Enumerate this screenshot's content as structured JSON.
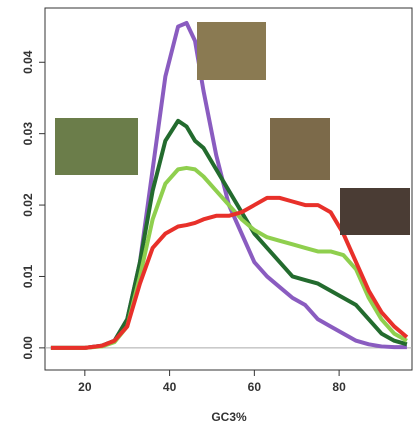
{
  "chart_data": {
    "type": "line",
    "xlabel": "GC3%",
    "x": [
      12,
      16,
      20,
      24,
      27,
      30,
      33,
      36,
      39,
      42,
      44,
      46,
      48,
      51,
      54,
      57,
      60,
      63,
      66,
      69,
      72,
      75,
      78,
      81,
      84,
      87,
      90,
      93,
      96
    ],
    "series": [
      {
        "color": "#8a5cc0",
        "values": [
          0,
          0,
          0,
          0.0003,
          0.001,
          0.004,
          0.012,
          0.025,
          0.038,
          0.045,
          0.0455,
          0.043,
          0.036,
          0.027,
          0.02,
          0.016,
          0.012,
          0.01,
          0.0085,
          0.007,
          0.006,
          0.004,
          0.003,
          0.002,
          0.001,
          0.0005,
          0.0002,
          0.0001,
          0.0001
        ]
      },
      {
        "color": "#236b2e",
        "values": [
          0,
          0,
          0,
          0.0003,
          0.001,
          0.004,
          0.012,
          0.022,
          0.029,
          0.0318,
          0.031,
          0.029,
          0.028,
          0.025,
          0.022,
          0.019,
          0.016,
          0.014,
          0.012,
          0.01,
          0.0095,
          0.009,
          0.008,
          0.007,
          0.006,
          0.004,
          0.002,
          0.001,
          0.0005
        ]
      },
      {
        "color": "#8fcf4e",
        "values": [
          0,
          0,
          0,
          0.0002,
          0.0008,
          0.003,
          0.01,
          0.018,
          0.023,
          0.025,
          0.0252,
          0.025,
          0.024,
          0.022,
          0.02,
          0.018,
          0.0165,
          0.0155,
          0.015,
          0.0145,
          0.014,
          0.0135,
          0.0135,
          0.013,
          0.011,
          0.007,
          0.004,
          0.002,
          0.001
        ]
      },
      {
        "color": "#e8302a",
        "values": [
          0,
          0,
          0,
          0.0003,
          0.001,
          0.003,
          0.009,
          0.014,
          0.016,
          0.017,
          0.0172,
          0.0175,
          0.018,
          0.0185,
          0.0185,
          0.019,
          0.02,
          0.021,
          0.021,
          0.0205,
          0.02,
          0.02,
          0.019,
          0.016,
          0.012,
          0.008,
          0.005,
          0.003,
          0.0015
        ]
      }
    ],
    "xlim": [
      10.6,
      97.2
    ],
    "xticks": [
      20,
      40,
      60,
      80
    ],
    "ylim": [
      -0.0031,
      0.0476
    ],
    "yticks": [
      {
        "value": 0,
        "label": "0.00"
      },
      0.01,
      0.02,
      0.03,
      0.04
    ]
  }
}
